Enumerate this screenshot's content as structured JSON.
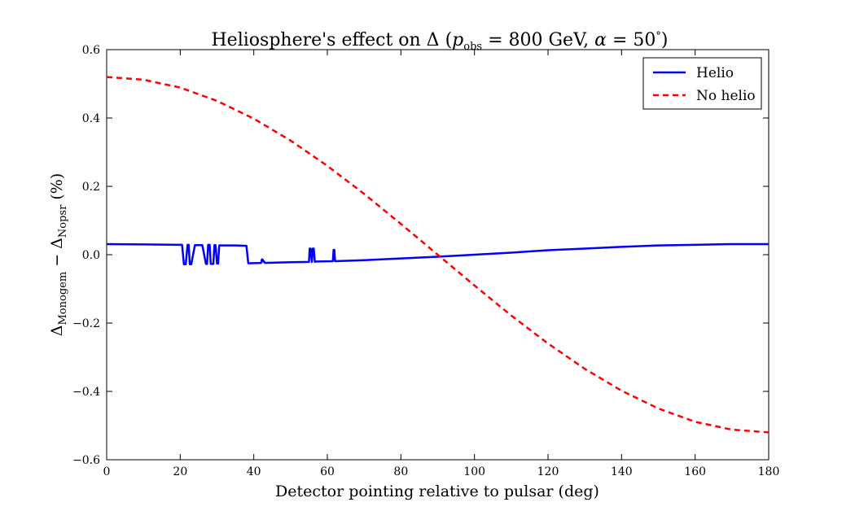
{
  "chart_data": {
    "type": "line",
    "title": "Heliosphere's effect on Δ (p",
    "title_parts": {
      "prefix": "Heliosphere's effect on Δ (",
      "p": "p",
      "p_sub": "obs",
      "p_value": " = 800 GeV, ",
      "alpha": "α",
      "alpha_value": " = 50",
      "degree": "°",
      "close": ")"
    },
    "xlabel": "Detector pointing relative to pulsar (deg)",
    "ylabel_parts": {
      "delta1": "Δ",
      "sub1": "Monogem",
      "minus": " − ",
      "delta2": "Δ",
      "sub2": "Nopsr",
      "unit": "  (%)"
    },
    "xlim": [
      0,
      180
    ],
    "ylim": [
      -0.6,
      0.6
    ],
    "x_ticks": [
      "0",
      "20",
      "40",
      "60",
      "80",
      "100",
      "120",
      "140",
      "160",
      "180"
    ],
    "y_ticks": [
      "0.6",
      "0.4",
      "0.2",
      "0.0",
      "−0.2",
      "−0.4",
      "−0.6"
    ],
    "x_tick_values": [
      0,
      20,
      40,
      60,
      80,
      100,
      120,
      140,
      160,
      180
    ],
    "y_tick_values": [
      0.6,
      0.4,
      0.2,
      0.0,
      -0.2,
      -0.4,
      -0.6
    ],
    "grid": false,
    "legend_position": "top-right",
    "series": [
      {
        "name": "Helio",
        "color": "#0000ff",
        "style": "solid",
        "x": [
          0,
          10,
          20,
          20.5,
          21,
          21.5,
          22,
          22.3,
          22.6,
          23,
          24,
          25,
          26,
          27,
          27.3,
          27.6,
          28,
          28.3,
          28.6,
          29,
          29.3,
          29.6,
          30,
          30.3,
          30.6,
          31,
          33,
          35,
          38,
          38.5,
          39,
          42,
          42.2,
          42.4,
          42.6,
          42.8,
          43,
          50,
          55,
          55.2,
          55.4,
          55.8,
          56,
          56.3,
          56.6,
          57,
          61.5,
          61.7,
          61.9,
          62.1,
          70,
          80,
          90,
          100,
          110,
          120,
          130,
          140,
          150,
          160,
          170,
          180
        ],
        "y": [
          0.031,
          0.03,
          0.029,
          0.029,
          -0.028,
          -0.028,
          0.029,
          0.029,
          -0.028,
          -0.028,
          0.028,
          0.028,
          0.028,
          -0.027,
          -0.027,
          0.029,
          0.029,
          -0.027,
          -0.027,
          -0.027,
          0.028,
          0.028,
          -0.026,
          -0.026,
          0.027,
          0.027,
          0.027,
          0.027,
          0.026,
          -0.025,
          -0.025,
          -0.024,
          -0.014,
          -0.014,
          -0.02,
          -0.02,
          -0.024,
          -0.022,
          -0.021,
          0.018,
          0.018,
          -0.021,
          0.018,
          0.018,
          -0.021,
          -0.02,
          -0.019,
          0.014,
          0.014,
          -0.019,
          -0.016,
          -0.011,
          -0.006,
          0.0,
          0.006,
          0.013,
          0.018,
          0.023,
          0.027,
          0.029,
          0.031,
          0.031
        ]
      },
      {
        "name": "No helio",
        "color": "#ff0000",
        "style": "dashed",
        "x": [
          0,
          10,
          20,
          30,
          40,
          50,
          60,
          70,
          80,
          90,
          100,
          110,
          120,
          130,
          140,
          150,
          160,
          170,
          180
        ],
        "y": [
          0.52,
          0.512,
          0.489,
          0.45,
          0.398,
          0.334,
          0.26,
          0.178,
          0.09,
          0.0,
          -0.09,
          -0.178,
          -0.26,
          -0.334,
          -0.398,
          -0.45,
          -0.489,
          -0.512,
          -0.52
        ]
      }
    ]
  }
}
